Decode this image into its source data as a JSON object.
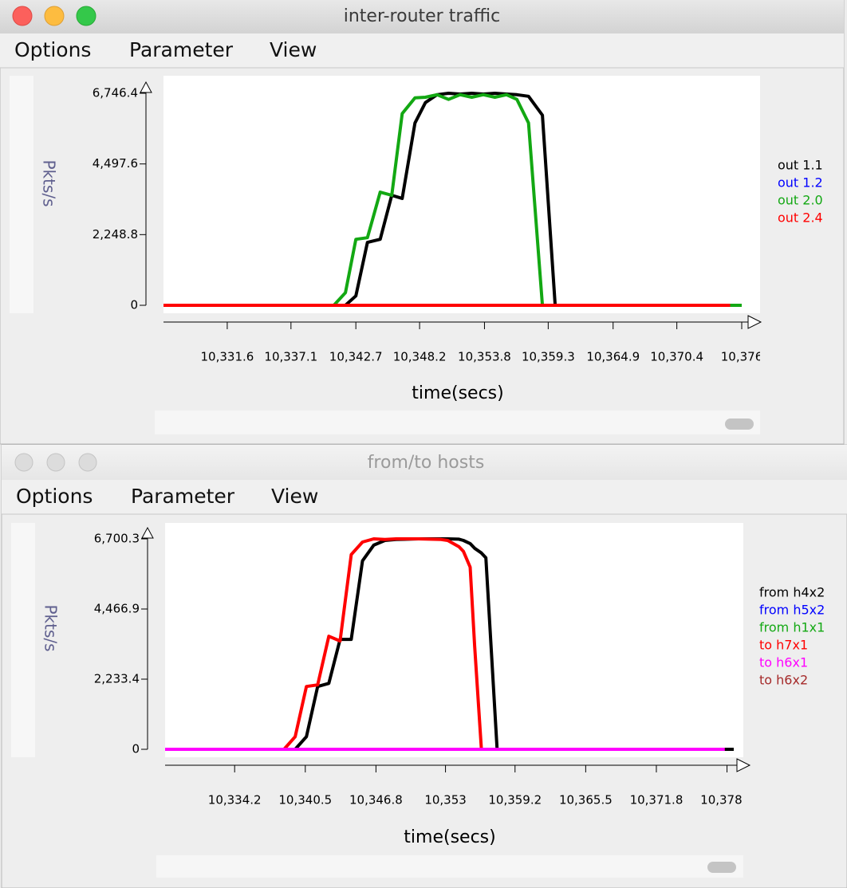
{
  "windows": [
    {
      "title": "inter-router traffic",
      "menu": [
        "Options",
        "Parameter",
        "View"
      ],
      "chart": {
        "type": "line",
        "ylabel": "Pkts/s",
        "xlabel": "time(secs)",
        "x": [
          10326.1,
          10340.8,
          10341.8,
          10342.7,
          10343.7,
          10344.8,
          10345.8,
          10346.7,
          10347.8,
          10348.7,
          10349.7,
          10350.7,
          10351.7,
          10352.7,
          10353.7,
          10354.7,
          10355.7,
          10356.6,
          10357.6,
          10358.8,
          10359.9,
          10375.0,
          10376.0
        ],
        "xlim": [
          10326.1,
          10376.0
        ],
        "xticks": [
          {
            "value": 10331.6,
            "label": "10,331.6"
          },
          {
            "value": 10337.1,
            "label": "10,337.1"
          },
          {
            "value": 10342.7,
            "label": "10,342.7"
          },
          {
            "value": 10348.2,
            "label": "10,348.2"
          },
          {
            "value": 10353.8,
            "label": "10,353.8"
          },
          {
            "value": 10359.3,
            "label": "10,359.3"
          },
          {
            "value": 10364.9,
            "label": "10,364.9"
          },
          {
            "value": 10370.4,
            "label": "10,370.4"
          },
          {
            "value": 10376.0,
            "label": "10,376"
          }
        ],
        "ylim": [
          0,
          6746.4
        ],
        "yticks": [
          0,
          {
            "value": 2248.8,
            "label": "2,248.8"
          },
          {
            "value": 4497.6,
            "label": "4,497.6"
          },
          {
            "value": 6746.4,
            "label": "6,746.4"
          }
        ],
        "series": [
          {
            "name": "out 1.1",
            "color": "#000000",
            "values": [
              0,
              0,
              0,
              300,
              2000,
              2100,
              3500,
              3400,
              5800,
              6450,
              6700,
              6746,
              6720,
              6746,
              6720,
              6746,
              6720,
              6700,
              6650,
              6050,
              0,
              0,
              0
            ]
          },
          {
            "name": "out 1.2",
            "color": "#0000ff",
            "values": [
              null,
              null,
              null,
              null,
              null,
              null,
              null,
              null,
              null,
              null,
              null,
              null,
              null,
              null,
              null,
              null,
              null,
              null,
              null,
              null,
              null,
              null,
              null
            ]
          },
          {
            "name": "out 2.0",
            "color": "#13a813",
            "values": [
              0,
              0,
              400,
              2100,
              2150,
              3600,
              3500,
              6100,
              6600,
              6620,
              6700,
              6550,
              6700,
              6620,
              6700,
              6620,
              6700,
              6550,
              5800,
              0,
              0,
              0,
              0
            ]
          },
          {
            "name": "out 2.4",
            "color": "#ff0000",
            "values": [
              0,
              0,
              0,
              0,
              0,
              0,
              0,
              0,
              0,
              0,
              0,
              0,
              0,
              0,
              0,
              0,
              0,
              0,
              0,
              0,
              0,
              0,
              null
            ]
          }
        ]
      }
    },
    {
      "title": "from/to hosts",
      "menu": [
        "Options",
        "Parameter",
        "View"
      ],
      "chart": {
        "type": "line",
        "ylabel": "Pkts/s",
        "xlabel": "time(secs)",
        "x": [
          10328.0,
          10338.6,
          10339.6,
          10340.6,
          10341.6,
          10342.6,
          10343.6,
          10344.6,
          10345.6,
          10346.6,
          10347.6,
          10348.6,
          10350.6,
          10352.6,
          10353.2,
          10354.2,
          10354.6,
          10355.2,
          10355.6,
          10356.2,
          10356.6,
          10357.6,
          10377.9,
          10378.7
        ],
        "xlim": [
          10328.0,
          10378.7
        ],
        "xticks": [
          {
            "value": 10334.2,
            "label": "10,334.2"
          },
          {
            "value": 10340.5,
            "label": "10,340.5"
          },
          {
            "value": 10346.8,
            "label": "10,346.8"
          },
          {
            "value": 10353,
            "label": "10,353"
          },
          {
            "value": 10359.2,
            "label": "10,359.2"
          },
          {
            "value": 10365.5,
            "label": "10,365.5"
          },
          {
            "value": 10371.8,
            "label": "10,371.8"
          },
          {
            "value": 10378.1,
            "label": "10,378.1"
          }
        ],
        "ylim": [
          0,
          6700.3
        ],
        "yticks": [
          0,
          {
            "value": 2233.4,
            "label": "2,233.4"
          },
          {
            "value": 4466.9,
            "label": "4,466.9"
          },
          {
            "value": 6700.3,
            "label": "6,700.3"
          }
        ],
        "series": [
          {
            "name": "from h4x2",
            "color": "#000000",
            "values": [
              0,
              0,
              0,
              400,
              2000,
              2100,
              3500,
              3500,
              6000,
              6500,
              6650,
              6680,
              6700,
              6700,
              6700,
              6690,
              6650,
              6550,
              6400,
              6250,
              6100,
              0,
              0,
              0
            ]
          },
          {
            "name": "from h5x2",
            "color": "#0000ff",
            "values": [
              null,
              null,
              null,
              null,
              null,
              null,
              null,
              null,
              null,
              null,
              null,
              null,
              null,
              null,
              null,
              null,
              null,
              null,
              null,
              null,
              null,
              null,
              null,
              null
            ]
          },
          {
            "name": "from h1x1",
            "color": "#13a813",
            "values": [
              null,
              null,
              null,
              null,
              null,
              null,
              null,
              null,
              null,
              null,
              null,
              null,
              null,
              null,
              null,
              null,
              null,
              null,
              null,
              null,
              null,
              null,
              null,
              null
            ]
          },
          {
            "name": "to h7x1",
            "color": "#ff0000",
            "values": [
              0,
              0,
              400,
              2000,
              2050,
              3600,
              3450,
              6200,
              6600,
              6700,
              6680,
              6700,
              6700,
              6680,
              6650,
              6450,
              6300,
              5800,
              3300,
              0,
              0,
              0,
              0,
              null
            ]
          },
          {
            "name": "to h6x1",
            "color": "#ff00ff",
            "values": [
              0,
              0,
              0,
              0,
              0,
              0,
              0,
              0,
              0,
              0,
              0,
              0,
              0,
              0,
              0,
              0,
              0,
              0,
              0,
              0,
              0,
              0,
              0,
              null
            ]
          },
          {
            "name": "to h6x2",
            "color": "#a52a2a",
            "values": [
              null,
              null,
              null,
              null,
              null,
              null,
              null,
              null,
              null,
              null,
              null,
              null,
              null,
              null,
              null,
              null,
              null,
              null,
              null,
              null,
              null,
              null,
              null,
              null
            ]
          }
        ]
      }
    }
  ]
}
